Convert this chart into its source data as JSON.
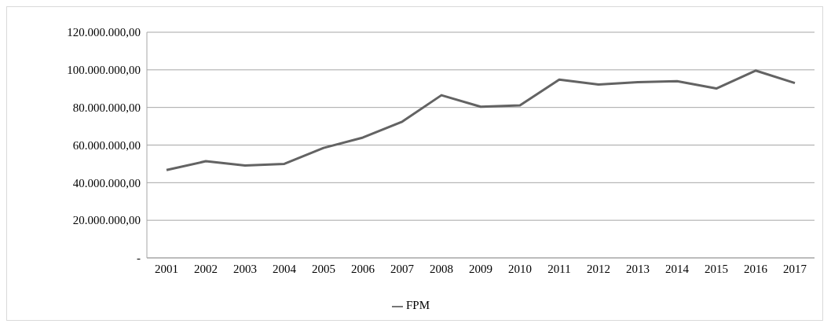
{
  "chart_data": {
    "type": "line",
    "categories": [
      "2001",
      "2002",
      "2003",
      "2004",
      "2005",
      "2006",
      "2007",
      "2008",
      "2009",
      "2010",
      "2011",
      "2012",
      "2013",
      "2014",
      "2015",
      "2016",
      "2017"
    ],
    "series": [
      {
        "name": "FPM",
        "color": "#636363",
        "values": [
          46700000,
          51400000,
          49100000,
          50000000,
          58500000,
          64000000,
          72400000,
          86500000,
          80400000,
          81100000,
          94800000,
          92200000,
          93500000,
          94000000,
          90100000,
          99600000,
          93000000
        ]
      }
    ],
    "ylim": [
      0,
      120000000
    ],
    "yticks": [
      {
        "value": 0,
        "label": "-"
      },
      {
        "value": 20000000,
        "label": "20.000.000,00"
      },
      {
        "value": 40000000,
        "label": "40.000.000,00"
      },
      {
        "value": 60000000,
        "label": "60.000.000,00"
      },
      {
        "value": 80000000,
        "label": "80.000.000,00"
      },
      {
        "value": 100000000,
        "label": "100.000.000,00"
      },
      {
        "value": 120000000,
        "label": "120.000.000,00"
      }
    ],
    "grid": "y",
    "legend": "bottom",
    "marker": "none",
    "line_style": "solid"
  }
}
